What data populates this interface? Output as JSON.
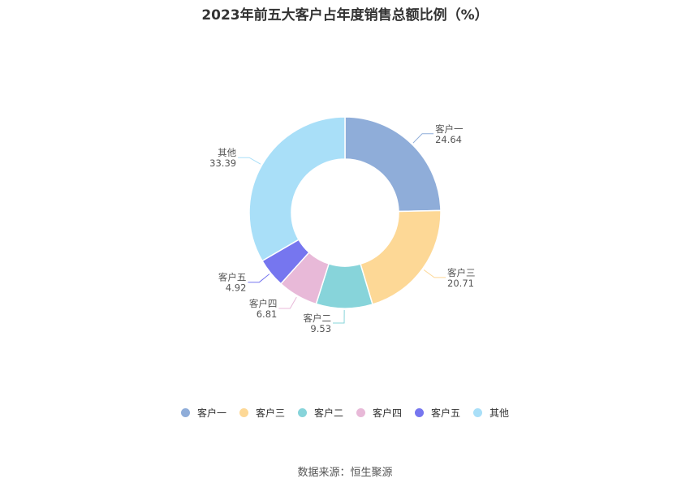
{
  "chart_data": {
    "type": "pie",
    "title": "2023年前五大客户占年度销售总额比例（%）",
    "slices": [
      {
        "name": "客户一",
        "value": 24.64,
        "label_value": "24.64",
        "color": "#8fadd9"
      },
      {
        "name": "客户三",
        "value": 20.71,
        "label_value": "20.71",
        "color": "#fdd896"
      },
      {
        "name": "客户二",
        "value": 9.53,
        "label_value": "9.53",
        "color": "#87d4da"
      },
      {
        "name": "客户四",
        "value": 6.81,
        "label_value": "6.81",
        "color": "#e8b9d8"
      },
      {
        "name": "客户五",
        "value": 4.92,
        "label_value": "4.92",
        "color": "#7676ef"
      },
      {
        "name": "其他",
        "value": 33.39,
        "label_value": "33.39",
        "color": "#a9dff8"
      }
    ],
    "legend_position": "bottom"
  },
  "source": "数据来源：恒生聚源"
}
